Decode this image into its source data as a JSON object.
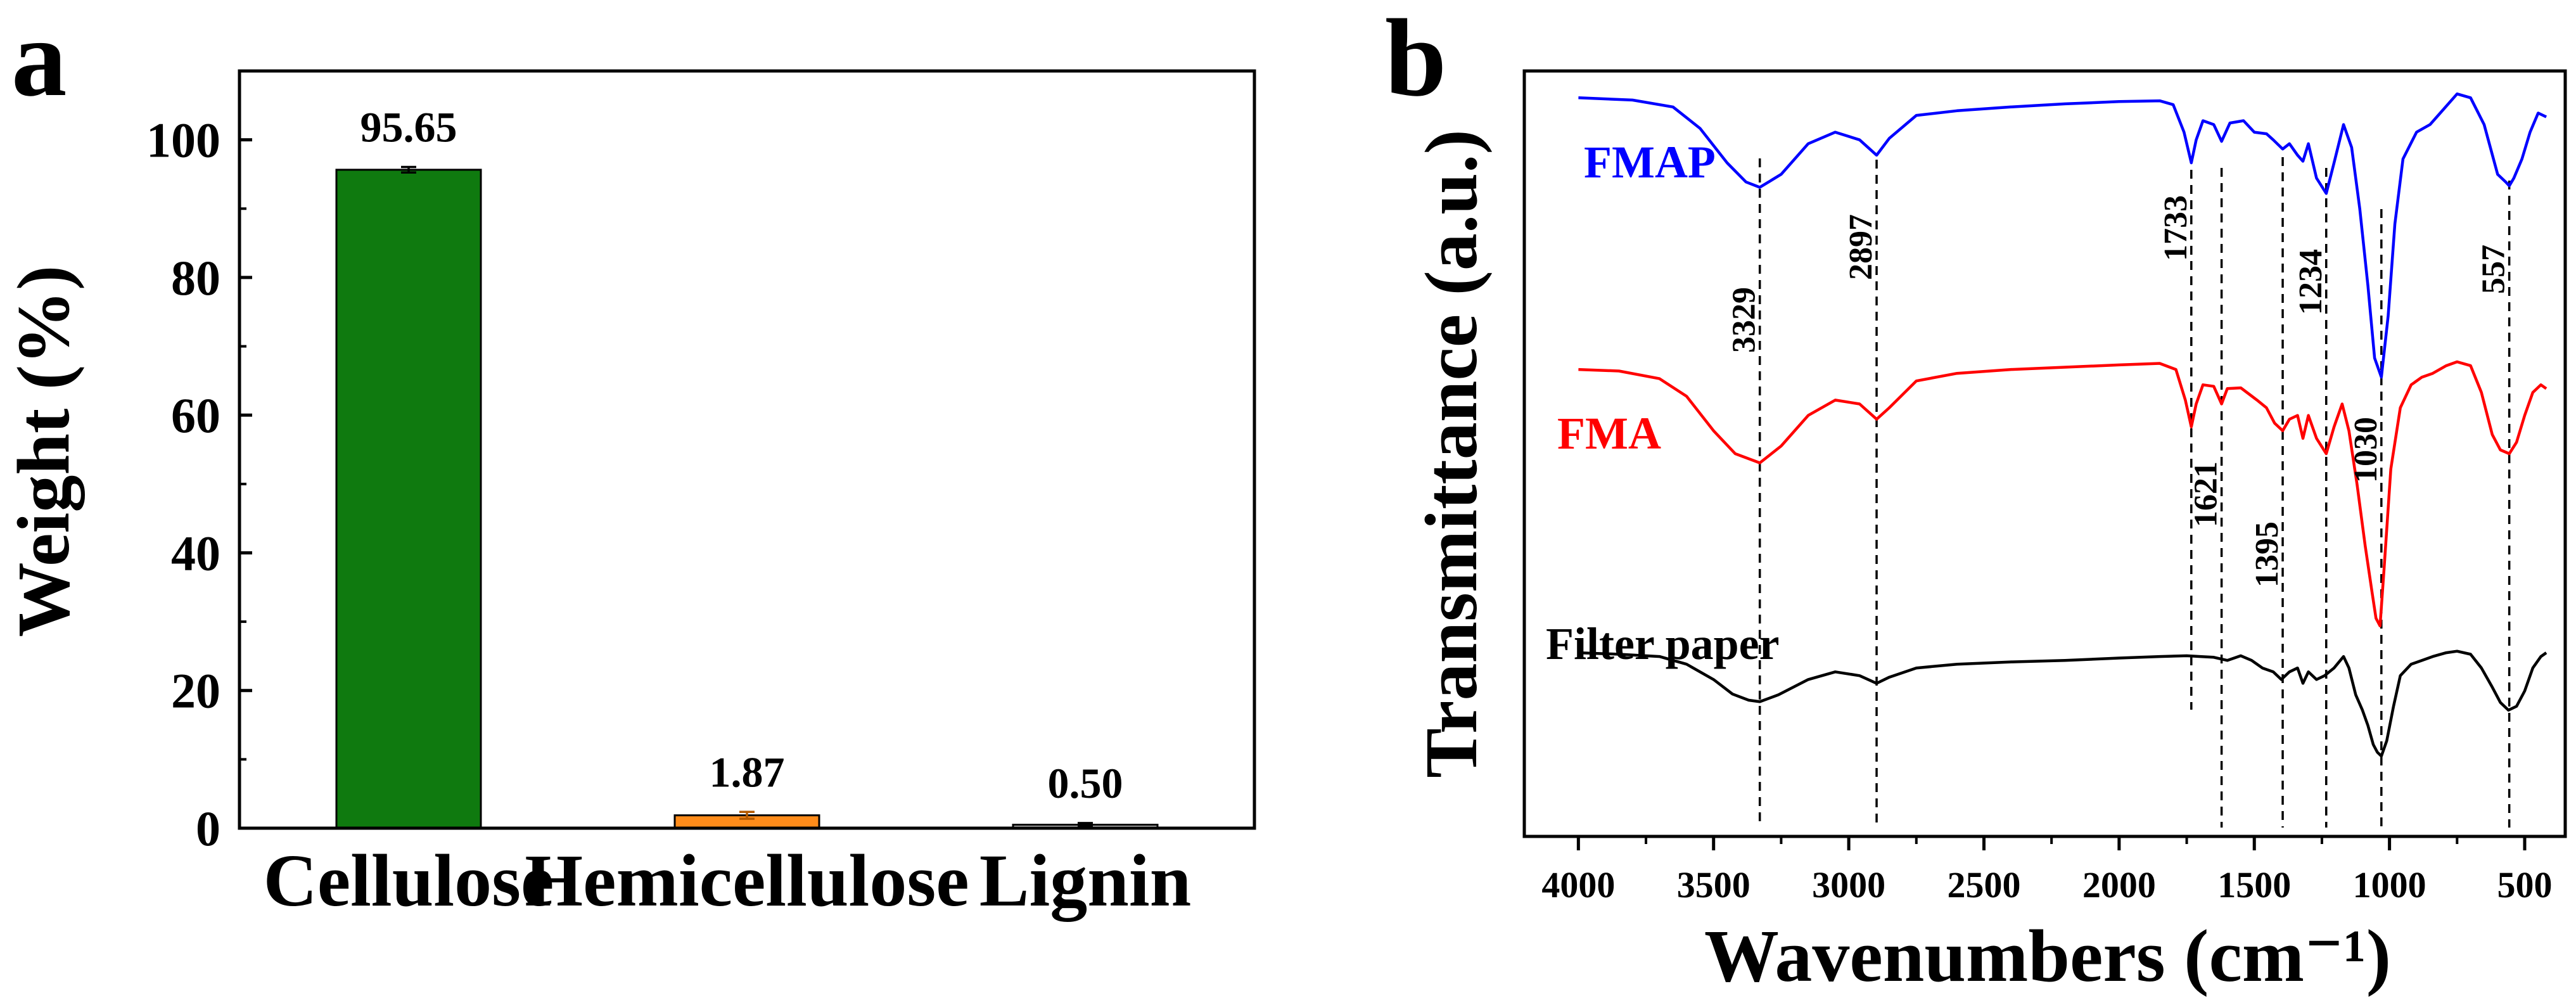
{
  "chart_data": [
    {
      "type": "bar",
      "panel": "a",
      "title": "",
      "xlabel": "",
      "ylabel": "Weight (%)",
      "categories": [
        "Cellulose",
        "Hemicellulose",
        "Lignin"
      ],
      "values": [
        95.65,
        1.87,
        0.5
      ],
      "value_labels": [
        "95.65",
        "1.87",
        "0.50"
      ],
      "errors": [
        0.4,
        0.5,
        0.25
      ],
      "colors": [
        "#0f7a0f",
        "#ff8c1a",
        "#c8c8c8"
      ],
      "ylim": [
        0,
        110
      ],
      "yticks": [
        0,
        20,
        40,
        60,
        80,
        100
      ],
      "ytick_labels": [
        "0",
        "20",
        "40",
        "60",
        "80",
        "100"
      ]
    },
    {
      "type": "line",
      "panel": "b",
      "title": "",
      "xlabel": "Wavenumbers (cm⁻¹)",
      "ylabel": "Transmittance (a.u.)",
      "xlim": [
        4200,
        350
      ],
      "xticks": [
        4000,
        3500,
        3000,
        2500,
        2000,
        1500,
        1000,
        500
      ],
      "xtick_labels": [
        "4000",
        "3500",
        "3000",
        "2500",
        "2000",
        "1500",
        "1000",
        "500"
      ],
      "ylim": [
        0,
        100
      ],
      "series": [
        {
          "name": "FMAP",
          "color": "#0000ff",
          "points": [
            [
              4000,
              96.5
            ],
            [
              3800,
              96.2
            ],
            [
              3650,
              95.3
            ],
            [
              3550,
              92.5
            ],
            [
              3450,
              88.0
            ],
            [
              3380,
              85.5
            ],
            [
              3329,
              84.8
            ],
            [
              3250,
              86.5
            ],
            [
              3150,
              90.5
            ],
            [
              3050,
              92.0
            ],
            [
              2960,
              91.0
            ],
            [
              2897,
              89.0
            ],
            [
              2850,
              91.2
            ],
            [
              2750,
              94.2
            ],
            [
              2600,
              94.8
            ],
            [
              2400,
              95.3
            ],
            [
              2200,
              95.7
            ],
            [
              2000,
              96.0
            ],
            [
              1850,
              96.1
            ],
            [
              1800,
              95.6
            ],
            [
              1760,
              92.0
            ],
            [
              1733,
              88.0
            ],
            [
              1715,
              91.0
            ],
            [
              1690,
              93.5
            ],
            [
              1650,
              93.0
            ],
            [
              1621,
              90.8
            ],
            [
              1590,
              93.2
            ],
            [
              1540,
              93.5
            ],
            [
              1500,
              92.0
            ],
            [
              1455,
              91.8
            ],
            [
              1430,
              91.0
            ],
            [
              1395,
              89.8
            ],
            [
              1370,
              90.5
            ],
            [
              1340,
              89.0
            ],
            [
              1320,
              88.2
            ],
            [
              1300,
              90.5
            ],
            [
              1270,
              86.0
            ],
            [
              1234,
              84.0
            ],
            [
              1205,
              88.0
            ],
            [
              1170,
              93.0
            ],
            [
              1140,
              90.0
            ],
            [
              1110,
              82.0
            ],
            [
              1080,
              72.0
            ],
            [
              1055,
              62.5
            ],
            [
              1030,
              60.0
            ],
            [
              1005,
              68.0
            ],
            [
              980,
              80.0
            ],
            [
              950,
              88.5
            ],
            [
              900,
              92.0
            ],
            [
              850,
              93.0
            ],
            [
              800,
              95.0
            ],
            [
              750,
              97.0
            ],
            [
              700,
              96.5
            ],
            [
              650,
              93.0
            ],
            [
              600,
              86.5
            ],
            [
              570,
              85.5
            ],
            [
              557,
              85.0
            ],
            [
              540,
              86.0
            ],
            [
              510,
              88.5
            ],
            [
              480,
              92.0
            ],
            [
              450,
              94.5
            ],
            [
              420,
              94.0
            ]
          ]
        },
        {
          "name": "FMA",
          "color": "#ff0000",
          "points": [
            [
              4000,
              61.0
            ],
            [
              3850,
              60.8
            ],
            [
              3700,
              59.8
            ],
            [
              3600,
              57.5
            ],
            [
              3500,
              53.0
            ],
            [
              3420,
              50.0
            ],
            [
              3329,
              48.8
            ],
            [
              3250,
              51.0
            ],
            [
              3150,
              55.0
            ],
            [
              3050,
              57.0
            ],
            [
              2960,
              56.5
            ],
            [
              2897,
              54.5
            ],
            [
              2850,
              56.0
            ],
            [
              2750,
              59.5
            ],
            [
              2600,
              60.5
            ],
            [
              2400,
              61.0
            ],
            [
              2200,
              61.3
            ],
            [
              2000,
              61.6
            ],
            [
              1850,
              61.8
            ],
            [
              1790,
              61.0
            ],
            [
              1755,
              57.0
            ],
            [
              1733,
              53.5
            ],
            [
              1715,
              56.5
            ],
            [
              1690,
              59.0
            ],
            [
              1650,
              58.8
            ],
            [
              1621,
              56.5
            ],
            [
              1600,
              58.5
            ],
            [
              1550,
              58.6
            ],
            [
              1490,
              57.0
            ],
            [
              1455,
              56.0
            ],
            [
              1425,
              54.0
            ],
            [
              1395,
              53.0
            ],
            [
              1370,
              54.5
            ],
            [
              1340,
              55.0
            ],
            [
              1320,
              52.0
            ],
            [
              1300,
              55.0
            ],
            [
              1270,
              52.0
            ],
            [
              1234,
              50.0
            ],
            [
              1205,
              53.5
            ],
            [
              1175,
              56.5
            ],
            [
              1150,
              53.0
            ],
            [
              1120,
              46.0
            ],
            [
              1090,
              38.0
            ],
            [
              1065,
              32.0
            ],
            [
              1050,
              28.5
            ],
            [
              1035,
              27.5
            ],
            [
              1020,
              35.0
            ],
            [
              995,
              48.0
            ],
            [
              960,
              56.0
            ],
            [
              920,
              59.0
            ],
            [
              880,
              60.0
            ],
            [
              840,
              60.5
            ],
            [
              790,
              61.5
            ],
            [
              750,
              62.0
            ],
            [
              700,
              61.5
            ],
            [
              660,
              58.0
            ],
            [
              620,
              52.5
            ],
            [
              590,
              50.5
            ],
            [
              557,
              50.0
            ],
            [
              530,
              51.5
            ],
            [
              500,
              55.0
            ],
            [
              470,
              58.0
            ],
            [
              440,
              59.0
            ],
            [
              420,
              58.5
            ]
          ]
        },
        {
          "name": "Filter paper",
          "color": "#000000",
          "points": [
            [
              4000,
              24.0
            ],
            [
              3850,
              23.8
            ],
            [
              3700,
              23.5
            ],
            [
              3600,
              22.5
            ],
            [
              3500,
              20.5
            ],
            [
              3430,
              18.6
            ],
            [
              3370,
              17.8
            ],
            [
              3329,
              17.6
            ],
            [
              3260,
              18.5
            ],
            [
              3150,
              20.5
            ],
            [
              3050,
              21.5
            ],
            [
              2960,
              21.0
            ],
            [
              2897,
              20.0
            ],
            [
              2850,
              20.8
            ],
            [
              2750,
              22.0
            ],
            [
              2600,
              22.5
            ],
            [
              2400,
              22.8
            ],
            [
              2200,
              23.0
            ],
            [
              2000,
              23.3
            ],
            [
              1850,
              23.5
            ],
            [
              1750,
              23.6
            ],
            [
              1700,
              23.5
            ],
            [
              1650,
              23.4
            ],
            [
              1600,
              23.0
            ],
            [
              1550,
              23.6
            ],
            [
              1510,
              23.0
            ],
            [
              1470,
              22.0
            ],
            [
              1430,
              21.5
            ],
            [
              1400,
              20.5
            ],
            [
              1370,
              21.5
            ],
            [
              1340,
              22.0
            ],
            [
              1320,
              20.0
            ],
            [
              1300,
              21.5
            ],
            [
              1270,
              20.5
            ],
            [
              1240,
              21.0
            ],
            [
              1205,
              22.0
            ],
            [
              1170,
              23.5
            ],
            [
              1150,
              22.0
            ],
            [
              1125,
              18.5
            ],
            [
              1100,
              16.5
            ],
            [
              1080,
              14.5
            ],
            [
              1060,
              12.0
            ],
            [
              1045,
              11.0
            ],
            [
              1030,
              10.5
            ],
            [
              1010,
              12.5
            ],
            [
              985,
              17.0
            ],
            [
              960,
              21.0
            ],
            [
              920,
              22.5
            ],
            [
              880,
              23.0
            ],
            [
              840,
              23.5
            ],
            [
              790,
              24.0
            ],
            [
              750,
              24.2
            ],
            [
              700,
              23.8
            ],
            [
              660,
              22.0
            ],
            [
              620,
              19.5
            ],
            [
              590,
              17.5
            ],
            [
              560,
              16.5
            ],
            [
              530,
              17.0
            ],
            [
              500,
              19.0
            ],
            [
              470,
              22.0
            ],
            [
              440,
              23.5
            ],
            [
              420,
              24.0
            ]
          ]
        }
      ],
      "peak_labels": [
        "3329",
        "2897",
        "1733",
        "1621",
        "1395",
        "1234",
        "1030",
        "557"
      ],
      "peak_positions": [
        3329,
        2897,
        1733,
        1621,
        1395,
        1234,
        1030,
        557
      ]
    }
  ],
  "panel_a": {
    "label": "a"
  },
  "panel_b": {
    "label": "b"
  }
}
